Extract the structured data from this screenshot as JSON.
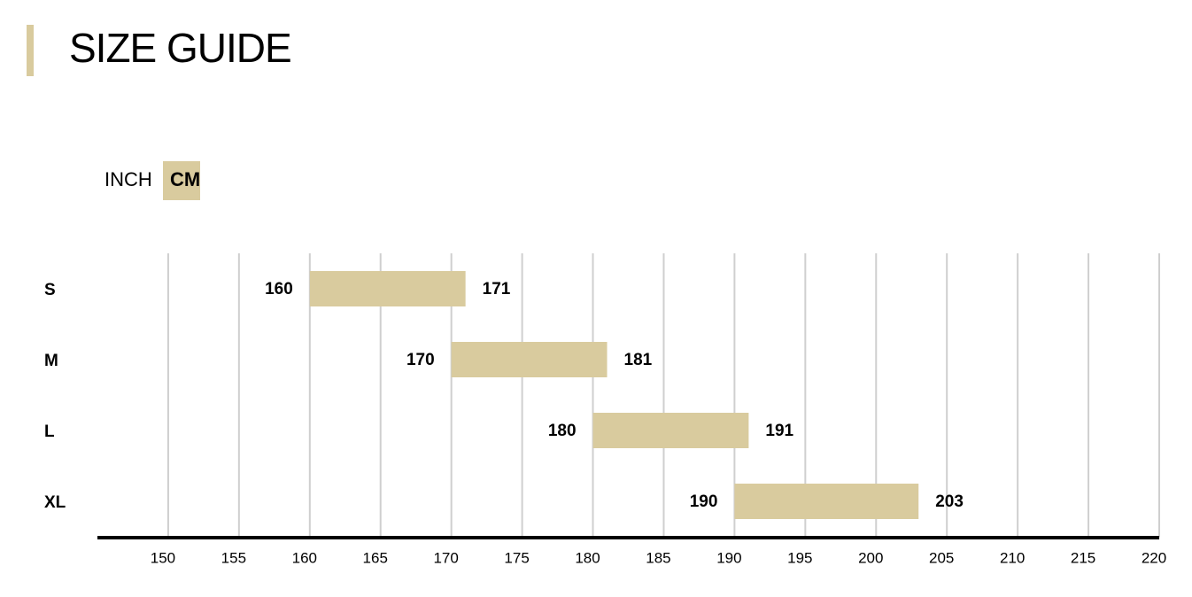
{
  "title": "SIZE GUIDE",
  "unit_toggle": {
    "options": [
      "INCH",
      "CM"
    ],
    "active": "CM"
  },
  "chart_data": {
    "type": "range",
    "categories": [
      "S",
      "M",
      "L",
      "XL"
    ],
    "low": [
      160,
      170,
      180,
      190
    ],
    "high": [
      171,
      181,
      191,
      203
    ],
    "color": "#d9cb9e",
    "xlim": [
      145,
      220
    ],
    "xticks": [
      150,
      155,
      160,
      165,
      170,
      175,
      180,
      185,
      190,
      195,
      200,
      205,
      210,
      215,
      220
    ],
    "grid": true
  }
}
